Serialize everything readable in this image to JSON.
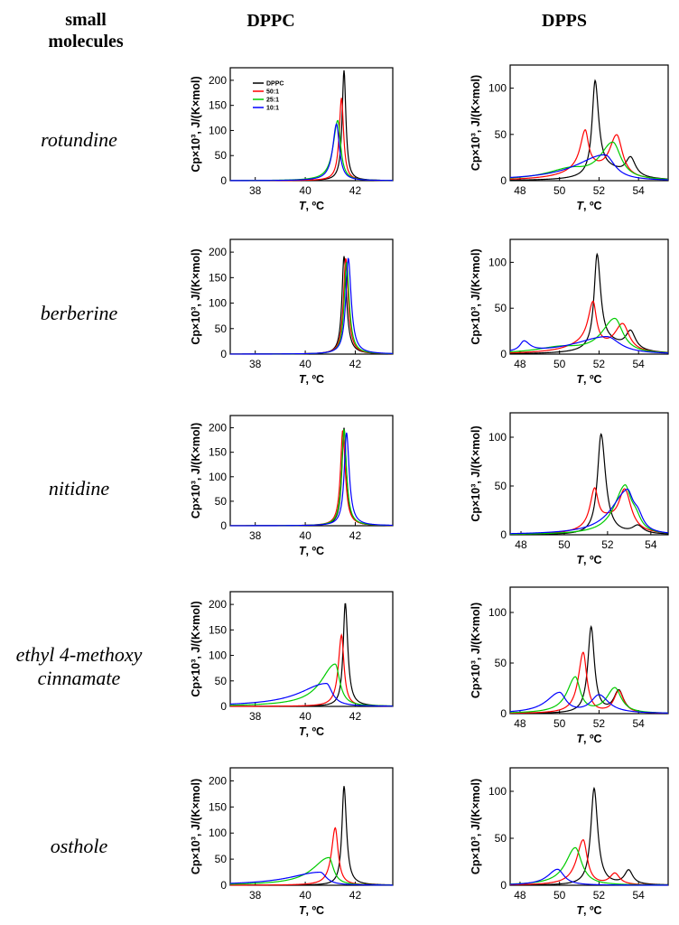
{
  "headers": {
    "col0_line1": "small",
    "col0_line2": "molecules",
    "col1": "DPPC",
    "col2": "DPPS"
  },
  "rows": [
    {
      "label_line1": "rotundine",
      "label_line2": ""
    },
    {
      "label_line1": "berberine",
      "label_line2": ""
    },
    {
      "label_line1": "nitidine",
      "label_line2": ""
    },
    {
      "label_line1": "ethyl 4-methoxy",
      "label_line2": "cinnamate"
    },
    {
      "label_line1": "osthole",
      "label_line2": ""
    }
  ],
  "axis_text": {
    "xlabel_var": "T",
    "xlabel_unit": ", ºC",
    "ylabel": "Cp×10³, J/(K×mol)"
  },
  "legend": [
    "DPPC",
    "50:1",
    "25:1",
    "10:1"
  ],
  "colors": {
    "DPPC": "#000000",
    "50:1": "#ff0000",
    "25:1": "#00cc00",
    "10:1": "#0000ff"
  },
  "chart_data": [
    {
      "type": "line",
      "molecule": "rotundine",
      "lipid": "DPPC",
      "xlim": [
        37,
        43.5
      ],
      "ylim": [
        0,
        225
      ],
      "xticks": [
        38,
        40,
        42
      ],
      "yticks": [
        0,
        50,
        100,
        150,
        200
      ],
      "series": [
        {
          "name": "DPPC",
          "peaks": [
            [
              41.55,
              220,
              0.09,
              0.09
            ]
          ]
        },
        {
          "name": "50:1",
          "peaks": [
            [
              41.45,
              165,
              0.11,
              0.1
            ]
          ]
        },
        {
          "name": "25:1",
          "peaks": [
            [
              41.3,
              120,
              0.22,
              0.14
            ]
          ]
        },
        {
          "name": "10:1",
          "peaks": [
            [
              41.25,
              113,
              0.18,
              0.14
            ]
          ]
        }
      ]
    },
    {
      "type": "line",
      "molecule": "rotundine",
      "lipid": "DPPS",
      "xlim": [
        47.5,
        55.5
      ],
      "ylim": [
        0,
        125
      ],
      "xticks": [
        48,
        50,
        52,
        54
      ],
      "yticks": [
        0,
        50,
        100
      ],
      "series": [
        {
          "name": "DPPC",
          "peaks": [
            [
              51.8,
              101,
              0.18,
              0.22
            ],
            [
              53.6,
              20,
              0.3,
              0.3
            ],
            [
              52.5,
              10,
              1.0,
              1.0
            ]
          ]
        },
        {
          "name": "50:1",
          "peaks": [
            [
              51.3,
              40,
              0.3,
              0.2
            ],
            [
              52.9,
              45,
              0.45,
              0.35
            ],
            [
              51.5,
              12,
              1.3,
              1.0
            ]
          ]
        },
        {
          "name": "25:1",
          "peaks": [
            [
              52.7,
              40,
              0.8,
              0.5
            ],
            [
              50.5,
              10,
              1.5,
              1.0
            ]
          ]
        },
        {
          "name": "10:1",
          "peaks": [
            [
              52.3,
              28,
              1.8,
              0.6
            ]
          ]
        }
      ]
    },
    {
      "type": "line",
      "molecule": "berberine",
      "lipid": "DPPC",
      "xlim": [
        37,
        43.5
      ],
      "ylim": [
        0,
        225
      ],
      "xticks": [
        38,
        40,
        42
      ],
      "yticks": [
        0,
        50,
        100,
        150,
        200
      ],
      "series": [
        {
          "name": "DPPC",
          "peaks": [
            [
              41.55,
              192,
              0.1,
              0.12
            ]
          ]
        },
        {
          "name": "50:1",
          "peaks": [
            [
              41.62,
              188,
              0.11,
              0.12
            ]
          ]
        },
        {
          "name": "25:1",
          "peaks": [
            [
              41.65,
              180,
              0.11,
              0.13
            ]
          ]
        },
        {
          "name": "10:1",
          "peaks": [
            [
              41.72,
              188,
              0.12,
              0.14
            ]
          ]
        }
      ]
    },
    {
      "type": "line",
      "molecule": "berberine",
      "lipid": "DPPS",
      "xlim": [
        47.5,
        55.5
      ],
      "ylim": [
        0,
        125
      ],
      "xticks": [
        48,
        50,
        52,
        54
      ],
      "yticks": [
        0,
        50,
        100
      ],
      "series": [
        {
          "name": "DPPC",
          "peaks": [
            [
              51.9,
              101,
              0.18,
              0.22
            ],
            [
              53.6,
              20,
              0.3,
              0.3
            ],
            [
              52.5,
              10,
              1.0,
              1.0
            ]
          ]
        },
        {
          "name": "50:1",
          "peaks": [
            [
              51.7,
              45,
              0.3,
              0.2
            ],
            [
              53.2,
              30,
              0.5,
              0.4
            ],
            [
              51.5,
              10,
              1.3,
              1.0
            ]
          ]
        },
        {
          "name": "25:1",
          "peaks": [
            [
              52.8,
              38,
              0.8,
              0.5
            ],
            [
              50.0,
              6,
              1.5,
              1.2
            ]
          ]
        },
        {
          "name": "10:1",
          "peaks": [
            [
              48.2,
              11,
              0.25,
              0.35
            ],
            [
              52.4,
              19,
              2.0,
              0.8
            ]
          ]
        }
      ]
    },
    {
      "type": "line",
      "molecule": "nitidine",
      "lipid": "DPPC",
      "xlim": [
        37,
        43.5
      ],
      "ylim": [
        0,
        225
      ],
      "xticks": [
        38,
        40,
        42
      ],
      "yticks": [
        0,
        50,
        100,
        150,
        200
      ],
      "series": [
        {
          "name": "DPPC",
          "peaks": [
            [
              41.55,
              200,
              0.1,
              0.11
            ]
          ]
        },
        {
          "name": "50:1",
          "peaks": [
            [
              41.5,
              195,
              0.11,
              0.12
            ]
          ]
        },
        {
          "name": "25:1",
          "peaks": [
            [
              41.55,
              197,
              0.11,
              0.12
            ]
          ]
        },
        {
          "name": "10:1",
          "peaks": [
            [
              41.65,
              190,
              0.11,
              0.13
            ]
          ]
        }
      ]
    },
    {
      "type": "line",
      "molecule": "nitidine",
      "lipid": "DPPS",
      "xlim": [
        47.5,
        54.8
      ],
      "ylim": [
        0,
        125
      ],
      "xticks": [
        48,
        50,
        52,
        54
      ],
      "yticks": [
        0,
        50,
        100
      ],
      "series": [
        {
          "name": "DPPC",
          "peaks": [
            [
              51.7,
              103,
              0.2,
              0.25
            ],
            [
              53.4,
              8,
              0.3,
              0.3
            ]
          ]
        },
        {
          "name": "50:1",
          "peaks": [
            [
              51.4,
              38,
              0.25,
              0.2
            ],
            [
              52.8,
              42,
              0.35,
              0.35
            ],
            [
              52.0,
              12,
              0.8,
              0.6
            ]
          ]
        },
        {
          "name": "25:1",
          "peaks": [
            [
              52.8,
              48,
              0.6,
              0.35
            ],
            [
              53.3,
              12,
              0.3,
              0.3
            ]
          ]
        },
        {
          "name": "10:1",
          "peaks": [
            [
              52.9,
              43,
              0.9,
              0.35
            ],
            [
              53.4,
              14,
              0.3,
              0.3
            ]
          ]
        }
      ]
    },
    {
      "type": "line",
      "molecule": "ethyl 4-methoxy cinnamate",
      "lipid": "DPPC",
      "xlim": [
        37,
        43.5
      ],
      "ylim": [
        0,
        225
      ],
      "xticks": [
        38,
        40,
        42
      ],
      "yticks": [
        0,
        50,
        100,
        150,
        200
      ],
      "series": [
        {
          "name": "DPPC",
          "peaks": [
            [
              41.6,
              203,
              0.1,
              0.12
            ]
          ]
        },
        {
          "name": "50:1",
          "peaks": [
            [
              41.45,
              140,
              0.15,
              0.12
            ]
          ]
        },
        {
          "name": "25:1",
          "peaks": [
            [
              41.2,
              83,
              0.7,
              0.22
            ]
          ]
        },
        {
          "name": "10:1",
          "peaks": [
            [
              40.85,
              45,
              1.3,
              0.28
            ]
          ]
        }
      ]
    },
    {
      "type": "line",
      "molecule": "ethyl 4-methoxy cinnamate",
      "lipid": "DPPS",
      "xlim": [
        47.5,
        55.5
      ],
      "ylim": [
        0,
        125
      ],
      "xticks": [
        48,
        50,
        52,
        54
      ],
      "yticks": [
        0,
        50,
        100
      ],
      "series": [
        {
          "name": "DPPC",
          "peaks": [
            [
              51.6,
              85,
              0.2,
              0.2
            ],
            [
              53.0,
              22,
              0.3,
              0.3
            ]
          ]
        },
        {
          "name": "50:1",
          "peaks": [
            [
              51.2,
              60,
              0.3,
              0.22
            ],
            [
              53.0,
              22,
              0.3,
              0.3
            ]
          ]
        },
        {
          "name": "25:1",
          "peaks": [
            [
              50.8,
              35,
              0.5,
              0.3
            ],
            [
              52.8,
              25,
              0.5,
              0.4
            ]
          ]
        },
        {
          "name": "10:1",
          "peaks": [
            [
              50.0,
              20,
              0.8,
              0.4
            ],
            [
              52.0,
              18,
              0.5,
              0.6
            ]
          ]
        }
      ]
    },
    {
      "type": "line",
      "molecule": "osthole",
      "lipid": "DPPC",
      "xlim": [
        37,
        43.5
      ],
      "ylim": [
        0,
        225
      ],
      "xticks": [
        38,
        40,
        42
      ],
      "yticks": [
        0,
        50,
        100,
        150,
        200
      ],
      "series": [
        {
          "name": "DPPC",
          "peaks": [
            [
              41.55,
              190,
              0.1,
              0.12
            ]
          ]
        },
        {
          "name": "50:1",
          "peaks": [
            [
              41.2,
              110,
              0.18,
              0.14
            ]
          ]
        },
        {
          "name": "25:1",
          "peaks": [
            [
              40.95,
              53,
              0.8,
              0.22
            ]
          ]
        },
        {
          "name": "10:1",
          "peaks": [
            [
              40.6,
              25,
              1.5,
              0.3
            ]
          ]
        }
      ]
    },
    {
      "type": "line",
      "molecule": "osthole",
      "lipid": "DPPS",
      "xlim": [
        47.5,
        55.5
      ],
      "ylim": [
        0,
        125
      ],
      "xticks": [
        48,
        50,
        52,
        54
      ],
      "yticks": [
        0,
        50,
        100
      ],
      "series": [
        {
          "name": "DPPC",
          "peaks": [
            [
              51.75,
              103,
              0.2,
              0.22
            ],
            [
              53.5,
              15,
              0.25,
              0.25
            ]
          ]
        },
        {
          "name": "50:1",
          "peaks": [
            [
              51.2,
              48,
              0.4,
              0.25
            ],
            [
              52.8,
              12,
              0.3,
              0.3
            ]
          ]
        },
        {
          "name": "25:1",
          "peaks": [
            [
              50.8,
              40,
              0.6,
              0.4
            ]
          ]
        },
        {
          "name": "10:1",
          "peaks": [
            [
              49.9,
              17,
              0.6,
              0.4
            ]
          ]
        }
      ]
    }
  ]
}
